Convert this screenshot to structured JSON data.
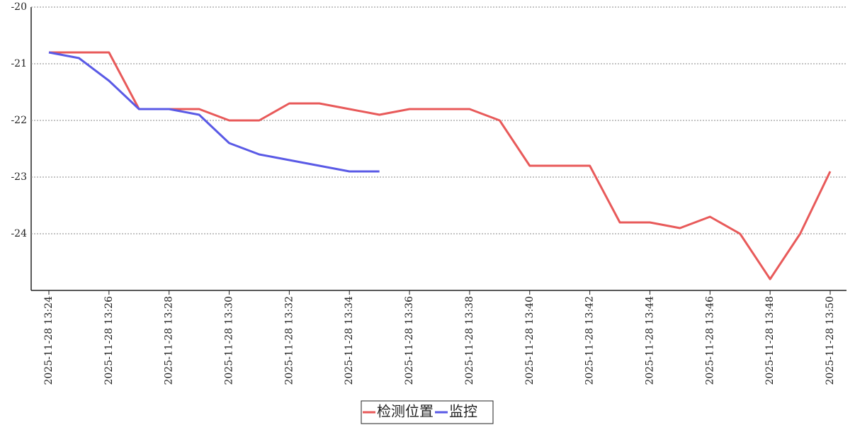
{
  "chart_data": {
    "type": "line",
    "categories": [
      "2025-11-28 13:24",
      null,
      "2025-11-28 13:26",
      null,
      "2025-11-28 13:28",
      null,
      "2025-11-28 13:30",
      null,
      "2025-11-28 13:32",
      null,
      "2025-11-28 13:34",
      null,
      "2025-11-28 13:36",
      null,
      "2025-11-28 13:38",
      null,
      "2025-11-28 13:40",
      null,
      "2025-11-28 13:42",
      null,
      "2025-11-28 13:44",
      null,
      "2025-11-28 13:46",
      null,
      "2025-11-28 13:48",
      null,
      "2025-11-28 13:50"
    ],
    "series": [
      {
        "name": "检测位置",
        "color": "#e85a5a",
        "values": [
          -20.8,
          -20.8,
          -20.8,
          -21.8,
          -21.8,
          -21.8,
          -22.0,
          -22.0,
          -21.7,
          -21.7,
          -21.8,
          -21.9,
          -21.8,
          -21.8,
          -21.8,
          -22.0,
          -22.8,
          -22.8,
          -22.8,
          -23.8,
          -23.8,
          -23.9,
          -23.7,
          -24.0,
          -24.8,
          -24.0,
          -22.9
        ]
      },
      {
        "name": "监控",
        "color": "#5a5ae6",
        "values": [
          -20.8,
          -20.9,
          -21.3,
          -21.8,
          -21.8,
          -21.9,
          -22.4,
          -22.6,
          -22.7,
          -22.8,
          -22.9,
          -22.9,
          null,
          null,
          null,
          null,
          null,
          null,
          null,
          null,
          null,
          null,
          null,
          null,
          null,
          null,
          null
        ]
      }
    ],
    "ylim": [
      -25,
      -20
    ],
    "yticks": [
      -20,
      -21,
      -22,
      -23,
      -24
    ],
    "grid": true,
    "legend": "bottom"
  }
}
